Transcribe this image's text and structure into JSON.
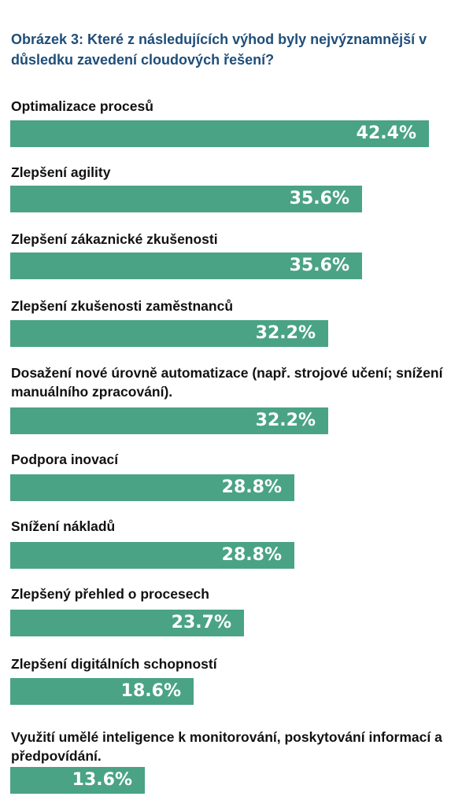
{
  "chart_data": {
    "type": "bar",
    "orientation": "horizontal",
    "title": "Obrázek 3: Které z následujících výhod byly nejvýznamnější v důsledku zavedení cloudových řešení?",
    "categories": [
      "Optimalizace procesů",
      "Zlepšení agility",
      "Zlepšení zákaznické zkušenosti",
      "Zlepšení zkušenosti zaměstnanců",
      "Dosažení nové úrovně automatizace (např. strojové učení; snížení manuálního zpracování).",
      "Podpora inovací",
      "Snížení nákladů",
      "Zlepšený přehled o procesech",
      "Zlepšení digitálních schopností",
      "Využití umělé inteligence k monitorování, poskytování informací a předpovídání."
    ],
    "values": [
      42.4,
      35.6,
      35.6,
      32.2,
      32.2,
      28.8,
      28.8,
      23.7,
      18.6,
      13.6
    ],
    "value_labels": [
      "42.4%",
      "35.6%",
      "35.6%",
      "32.2%",
      "32.2%",
      "28.8%",
      "28.8%",
      "23.7%",
      "18.6%",
      "13.6%"
    ],
    "unit": "%",
    "bar_color": "#4aa384",
    "title_color": "#1f4e79",
    "legend": "none",
    "grid": false
  }
}
